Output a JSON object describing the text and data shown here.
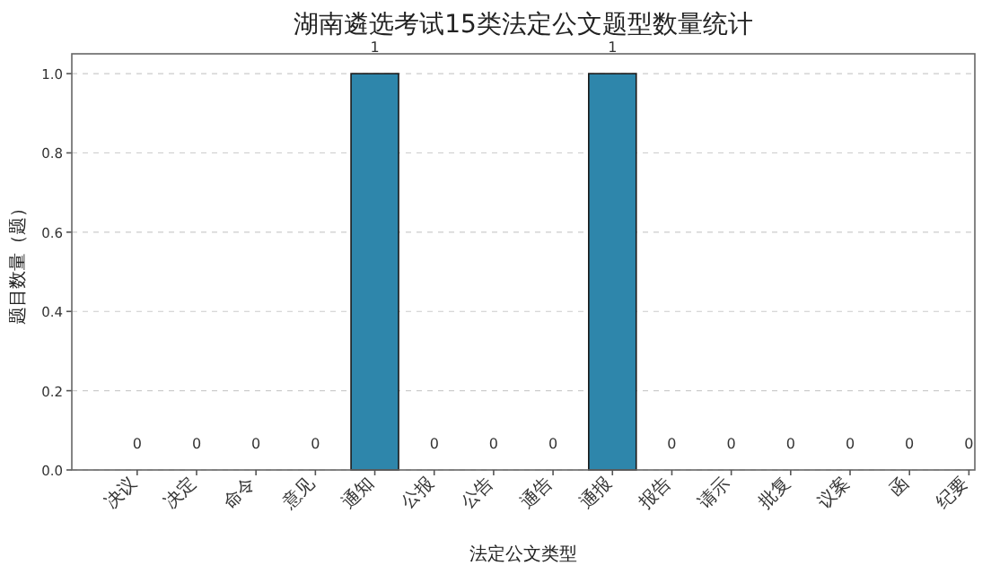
{
  "chart_data": {
    "type": "bar",
    "title": "湖南遴选考试15类法定公文题型数量统计",
    "xlabel": "法定公文类型",
    "ylabel": "题目数量（题）",
    "categories": [
      "决议",
      "决定",
      "命令",
      "意见",
      "通知",
      "公报",
      "公告",
      "通告",
      "通报",
      "报告",
      "请示",
      "批复",
      "议案",
      "函",
      "纪要"
    ],
    "values": [
      0,
      0,
      0,
      0,
      1,
      0,
      0,
      0,
      1,
      0,
      0,
      0,
      0,
      0,
      0
    ],
    "color": "#2e86ab",
    "ylim": [
      0,
      1.05
    ],
    "yticks": [
      {
        "value": 0,
        "label": "0.0"
      },
      {
        "value": 0.2,
        "label": "0.2"
      },
      {
        "value": 0.4,
        "label": "0.4"
      },
      {
        "value": 0.6,
        "label": "0.6"
      },
      {
        "value": 0.8,
        "label": "0.8"
      },
      {
        "value": 1,
        "label": "1.0"
      }
    ],
    "grid": "y",
    "data_labels": true
  }
}
